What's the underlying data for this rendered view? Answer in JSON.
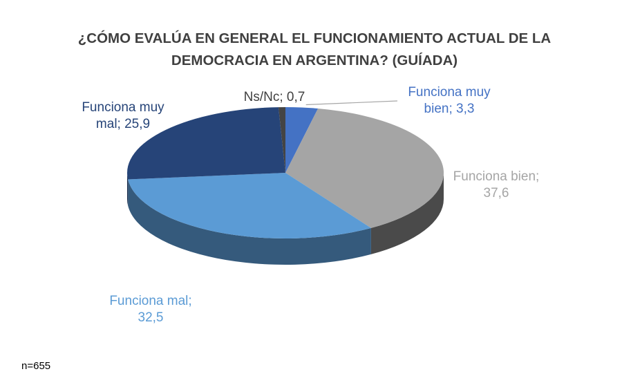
{
  "chart_data": {
    "type": "pie",
    "title_lines": [
      "¿CÓMO EVALÚA EN GENERAL EL FUNCIONAMIENTO ACTUAL DE LA",
      "DEMOCRACIA EN ARGENTINA? (GUÍADA)"
    ],
    "slices": [
      {
        "label_lines": [
          "Funciona muy",
          "bien; 3,3"
        ],
        "value": 3.3,
        "color": "#4472C4",
        "label_color": "#4472C4"
      },
      {
        "label_lines": [
          "Funciona bien;",
          "37,6"
        ],
        "value": 37.6,
        "color": "#A5A5A5",
        "label_color": "#A5A5A5"
      },
      {
        "label_lines": [
          "Funciona mal;",
          "32,5"
        ],
        "value": 32.5,
        "color": "#5B9BD5",
        "label_color": "#5B9BD5"
      },
      {
        "label_lines": [
          "Funciona muy",
          "mal; 25,9"
        ],
        "value": 25.9,
        "color": "#264478",
        "label_color": "#264478"
      },
      {
        "label_lines": [
          "Ns/Nc; 0,7"
        ],
        "value": 0.7,
        "color": "#444444",
        "label_color": "#404040"
      }
    ],
    "style": "3d-pie",
    "legend": "none"
  },
  "footnote": "n=655"
}
